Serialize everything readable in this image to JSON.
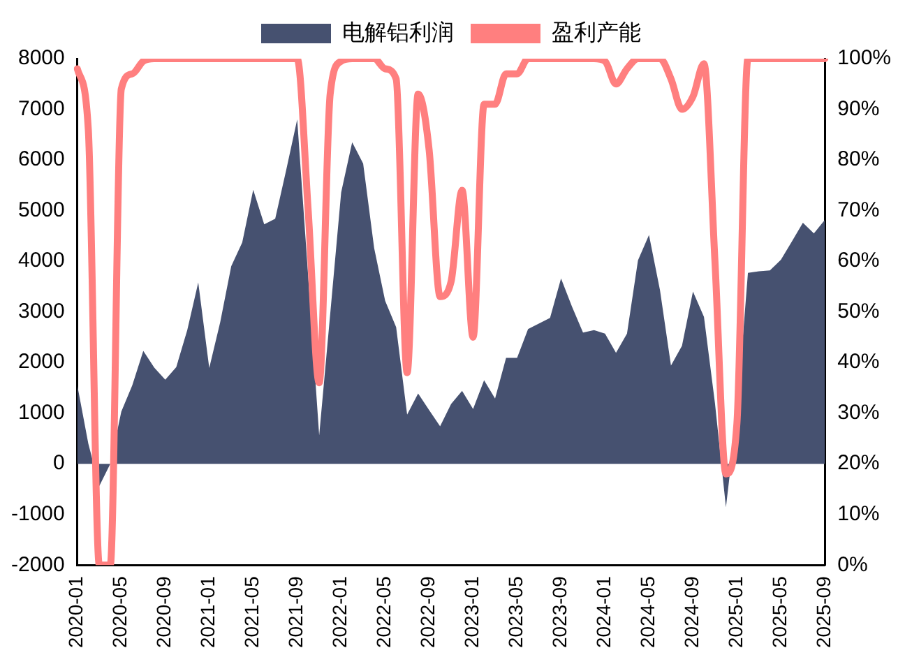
{
  "chart_data": {
    "type": "area",
    "categories": [
      "2020-01",
      null,
      null,
      null,
      "2020-05",
      null,
      null,
      null,
      "2020-09",
      null,
      null,
      null,
      "2021-01",
      null,
      null,
      null,
      "2021-05",
      null,
      null,
      null,
      "2021-09",
      null,
      null,
      null,
      "2022-01",
      null,
      null,
      null,
      "2022-05",
      null,
      null,
      null,
      "2022-09",
      null,
      null,
      null,
      "2023-01",
      null,
      null,
      null,
      "2023-05",
      null,
      null,
      null,
      "2023-09",
      null,
      null,
      null,
      "2024-01",
      null,
      null,
      null,
      "2024-05",
      null,
      null,
      null,
      "2024-09",
      null,
      null,
      null,
      "2025-01",
      null,
      null,
      null,
      "2025-05",
      null,
      null,
      null,
      "2025-09"
    ],
    "series": [
      {
        "name": "电解铝利润",
        "color": "#465170",
        "values": [
          1550,
          400,
          -440,
          0,
          1030,
          1550,
          2230,
          1900,
          1660,
          1910,
          2640,
          3580,
          1890,
          2800,
          3900,
          4370,
          5410,
          4730,
          4840,
          5800,
          6800,
          3700,
          560,
          2950,
          5360,
          6350,
          5930,
          4260,
          3220,
          2700,
          970,
          1390,
          1060,
          740,
          1180,
          1440,
          1080,
          1650,
          1290,
          2090,
          2090,
          2660,
          2770,
          2880,
          3660,
          3100,
          2590,
          2640,
          2570,
          2190,
          2570,
          4020,
          4520,
          3430,
          1940,
          2330,
          3400,
          2900,
          1200,
          -860,
          1000,
          3770,
          3800,
          3820,
          4030,
          4390,
          4760,
          4550,
          4820
        ]
      },
      {
        "name": "盈利产能",
        "type": "line",
        "axis": "y2",
        "color": "#ff7f7f",
        "values": [
          98,
          86,
          0,
          0,
          94,
          97,
          99.5,
          100,
          100,
          100,
          100,
          100,
          100,
          100,
          100,
          100,
          100,
          100,
          100,
          100,
          100,
          70,
          36,
          93,
          99.5,
          100,
          100,
          100,
          98,
          96,
          38,
          93,
          82,
          53,
          56,
          74,
          45,
          91,
          91,
          97,
          97,
          100,
          100,
          100,
          100,
          100,
          100,
          100,
          99.5,
          95,
          98,
          100,
          100,
          100,
          96,
          90,
          92.5,
          99,
          60,
          18,
          28,
          100,
          100,
          100,
          100,
          100,
          100,
          100,
          100
        ]
      }
    ],
    "ylim": [
      -2000,
      8000
    ],
    "yticks": [
      -2000,
      -1000,
      0,
      1000,
      2000,
      3000,
      4000,
      5000,
      6000,
      7000,
      8000
    ],
    "y2lim": [
      0,
      100
    ],
    "y2ticks": [
      {
        "value": 0,
        "label": "0%"
      },
      {
        "value": 10,
        "label": "10%"
      },
      {
        "value": 20,
        "label": "20%"
      },
      {
        "value": 30,
        "label": "30%"
      },
      {
        "value": 40,
        "label": "40%"
      },
      {
        "value": 50,
        "label": "50%"
      },
      {
        "value": 60,
        "label": "60%"
      },
      {
        "value": 70,
        "label": "70%"
      },
      {
        "value": 80,
        "label": "80%"
      },
      {
        "value": 90,
        "label": "90%"
      },
      {
        "value": 100,
        "label": "100%"
      }
    ],
    "grid": false,
    "legend": "top",
    "marker": "none"
  }
}
